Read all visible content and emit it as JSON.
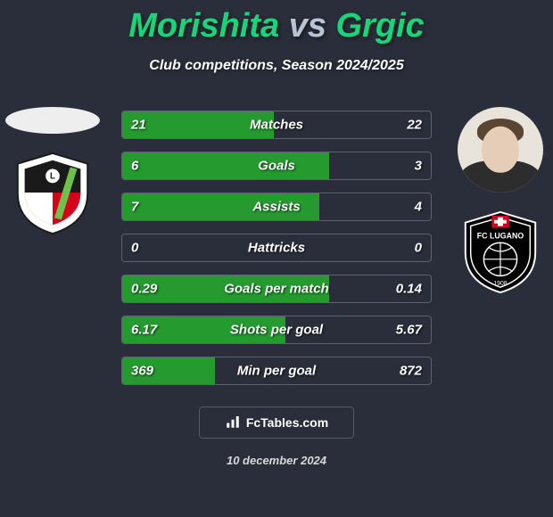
{
  "header": {
    "player1_name": "Morishita",
    "vs_text": "vs",
    "player2_name": "Grgic",
    "subtitle": "Club competitions, Season 2024/2025",
    "title_color_p1": "#17d67a",
    "title_color_vs": "#b8c4d4",
    "title_color_p2": "#17d67a"
  },
  "colors": {
    "bg": "#2a2e3a",
    "fill_p1": "#249a2f",
    "fill_border": "#5c6070",
    "text": "#ffffff"
  },
  "stats": [
    {
      "label": "Matches",
      "p1": "21",
      "p2": "22",
      "fill_pct": 49
    },
    {
      "label": "Goals",
      "p1": "6",
      "p2": "3",
      "fill_pct": 67
    },
    {
      "label": "Assists",
      "p1": "7",
      "p2": "4",
      "fill_pct": 64
    },
    {
      "label": "Hattricks",
      "p1": "0",
      "p2": "0",
      "fill_pct": 0
    },
    {
      "label": "Goals per match",
      "p1": "0.29",
      "p2": "0.14",
      "fill_pct": 67
    },
    {
      "label": "Shots per goal",
      "p1": "6.17",
      "p2": "5.67",
      "fill_pct": 53
    },
    {
      "label": "Min per goal",
      "p1": "369",
      "p2": "872",
      "fill_pct": 30
    }
  ],
  "player1": {
    "club_name": "Legia",
    "shield_bg": "#ffffff",
    "shield_inner_top": "#1a1a1a",
    "shield_inner_bottom": "#d6001c",
    "stripe": "#6fbf4b"
  },
  "player2": {
    "club_name": "FC Lugano",
    "shield_bg": "#000000",
    "shield_text": "#ffffff",
    "cross": "#d6001c"
  },
  "footer": {
    "site_label": "FcTables.com",
    "date_text": "10 december 2024"
  }
}
